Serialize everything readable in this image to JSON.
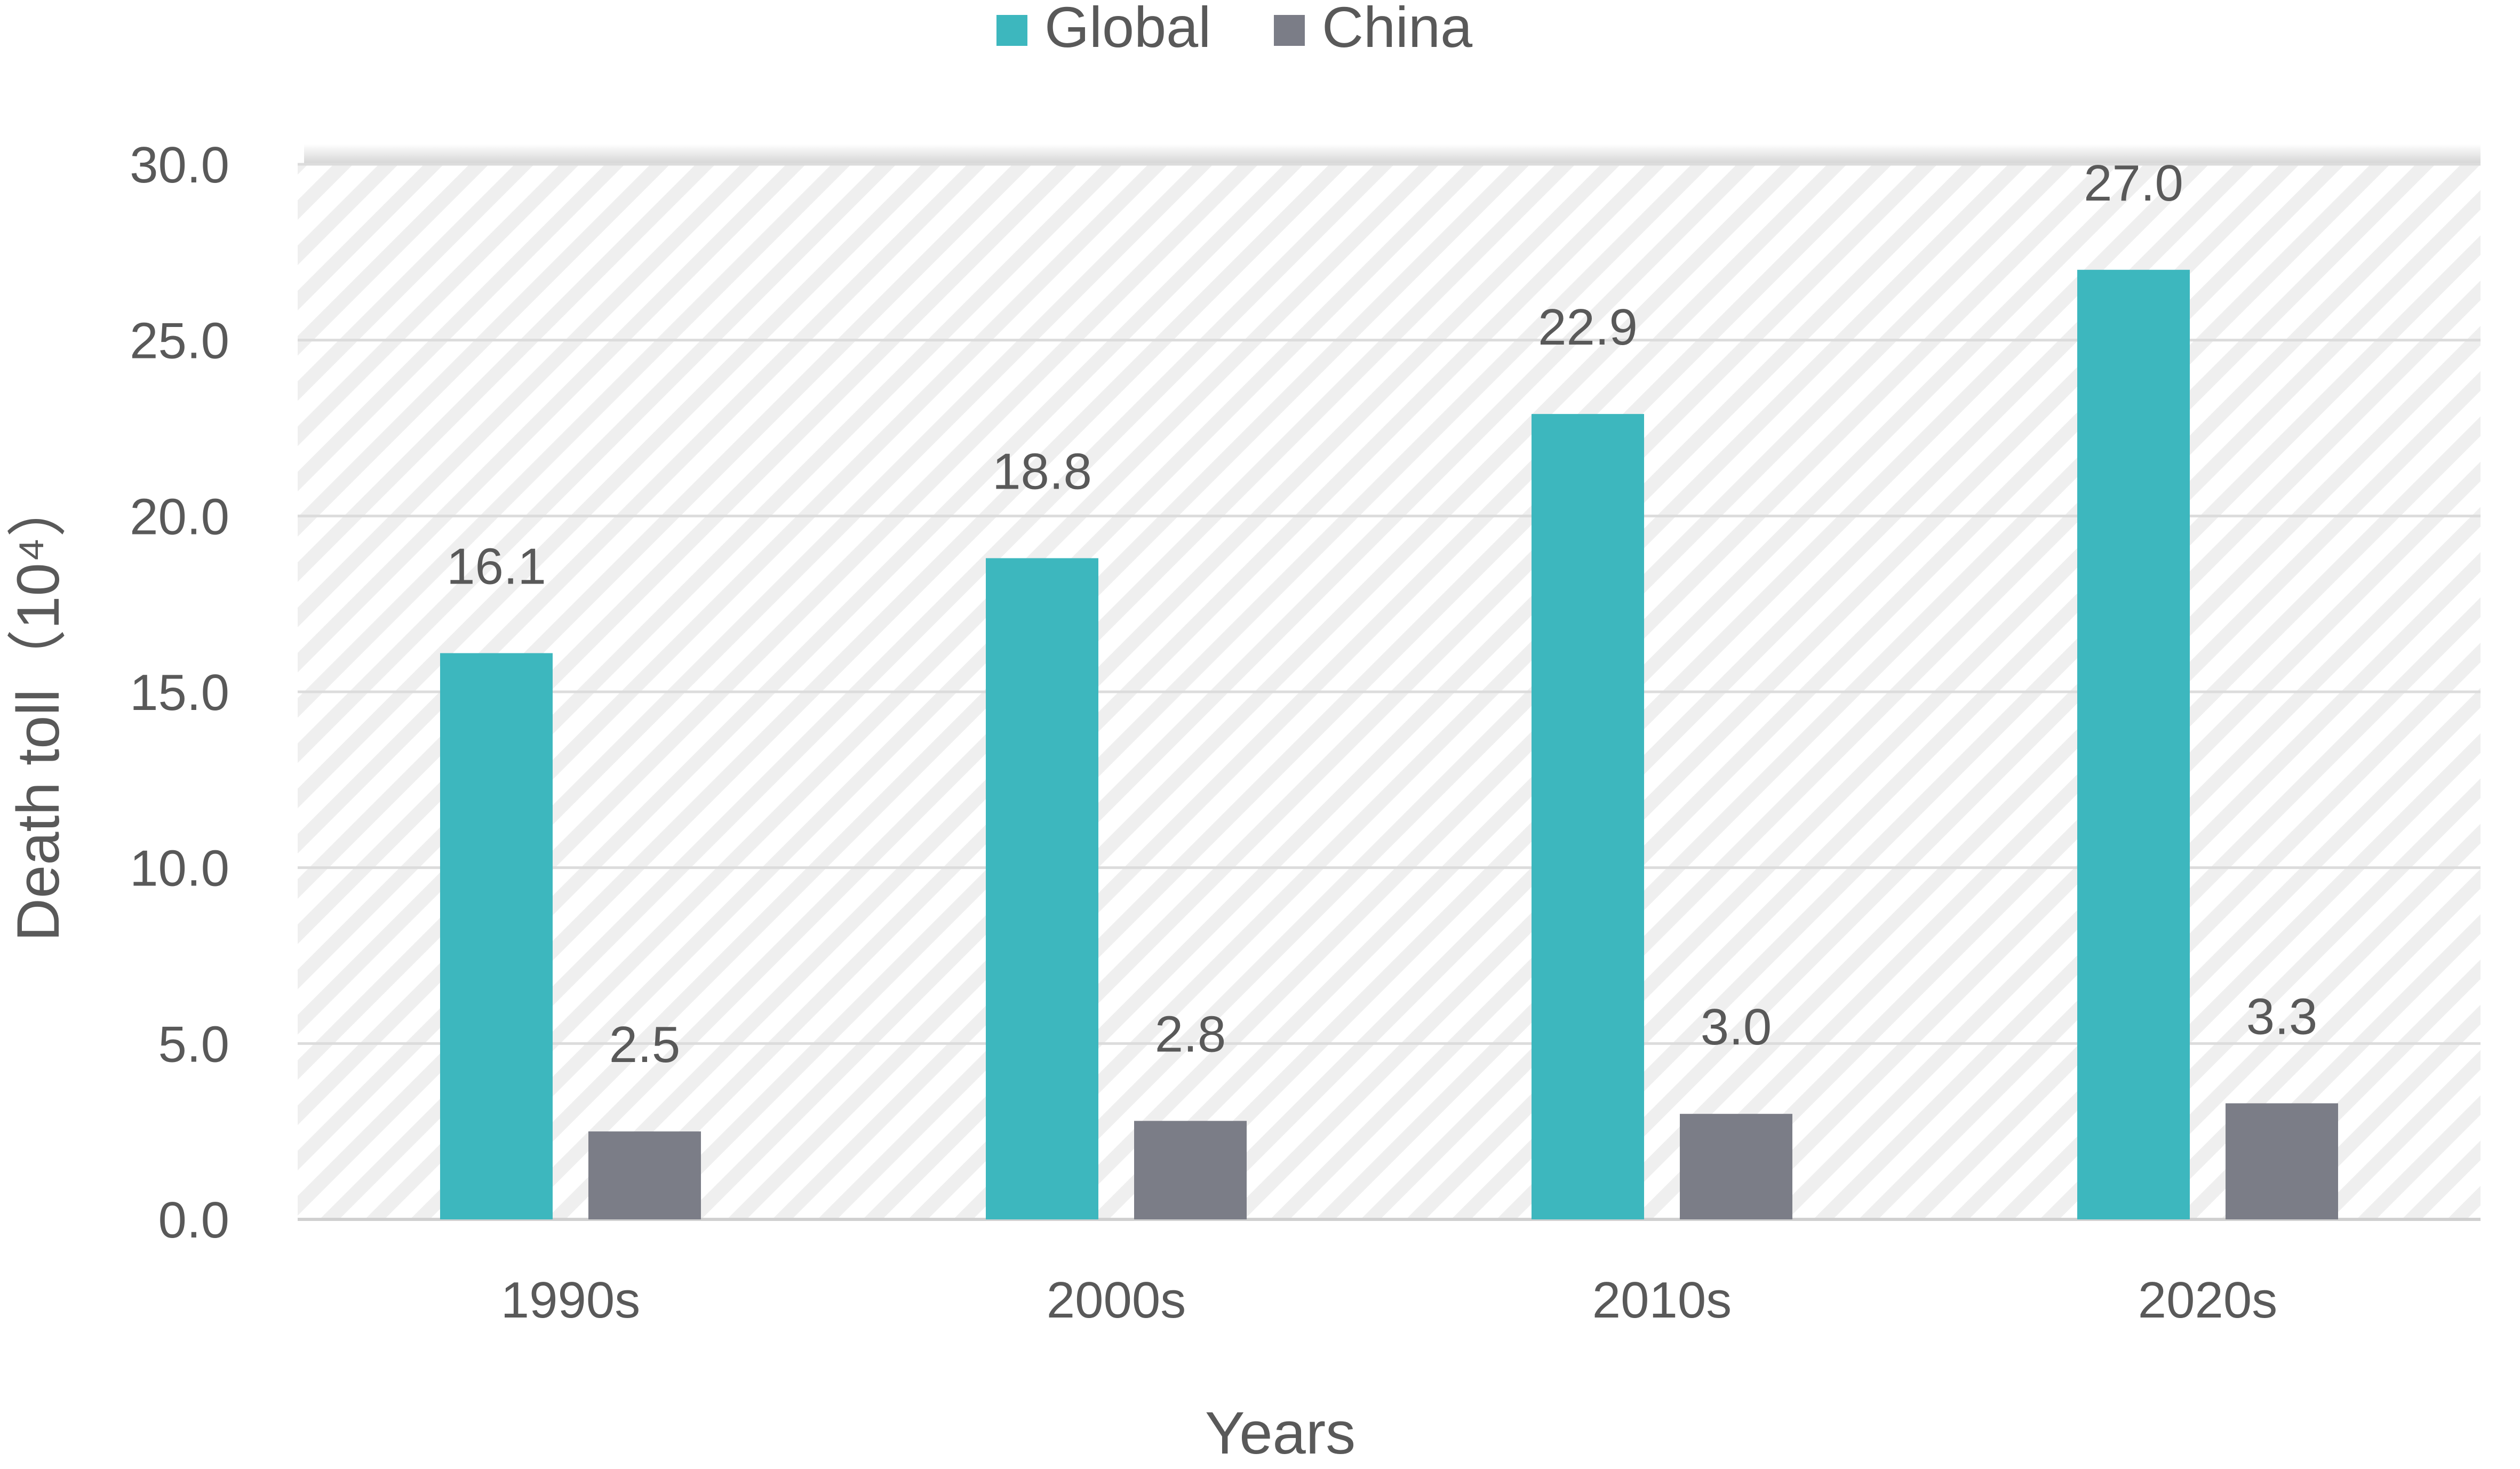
{
  "chart_data": {
    "type": "bar",
    "title": "",
    "xlabel": "Years",
    "ylabel": "Death toll（10⁴）",
    "ylim": [
      0,
      30
    ],
    "yticks": [
      "0.0",
      "5.0",
      "10.0",
      "15.0",
      "20.0",
      "25.0",
      "30.0"
    ],
    "grid": true,
    "legend_position": "top",
    "categories": [
      "1990s",
      "2000s",
      "2010s",
      "2020s"
    ],
    "series": [
      {
        "name": "Global",
        "color": "#3DB7BE",
        "values": [
          16.1,
          18.8,
          22.9,
          27.0
        ],
        "labels": [
          "16.1",
          "18.8",
          "22.9",
          "27.0"
        ]
      },
      {
        "name": "China",
        "color": "#7B7D87",
        "values": [
          2.5,
          2.8,
          3.0,
          3.3
        ],
        "labels": [
          "2.5",
          "2.8",
          "3.0",
          "3.3"
        ]
      }
    ]
  }
}
